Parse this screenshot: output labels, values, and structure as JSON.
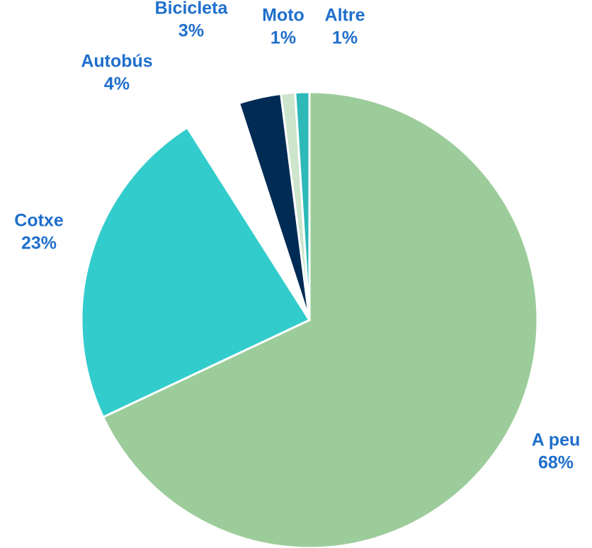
{
  "chart_data": {
    "type": "pie",
    "categories": [
      "A peu",
      "Cotxe",
      "Autobús",
      "Bicicleta",
      "Moto",
      "Altre"
    ],
    "values": [
      68,
      23,
      4,
      3,
      1,
      1
    ],
    "value_labels": [
      "68%",
      "23%",
      "4%",
      "3%",
      "1%",
      "1%"
    ],
    "colors": [
      "#9ccc9a",
      "#33cccc",
      "#ffffff",
      "#002b55",
      "#cce5cc",
      "#2fb8b8"
    ]
  }
}
